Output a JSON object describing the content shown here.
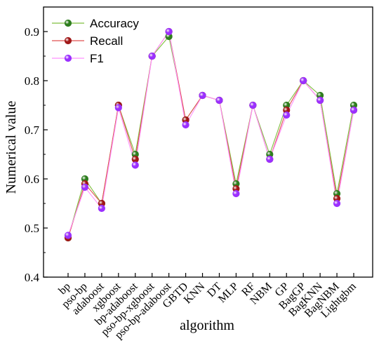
{
  "chart_data": {
    "type": "line",
    "categories": [
      "bp",
      "pso-bp",
      "adaboost",
      "xgboost",
      "bp-adaboost",
      "pso-bp-xgboost",
      "pso-bp-adaboost",
      "GBTD",
      "KNN",
      "DT",
      "MLP",
      "RF",
      "NBM",
      "GP",
      "BagGP",
      "BagKNN",
      "BagNBM",
      "Lightgbm"
    ],
    "series": [
      {
        "name": "Accuracy",
        "color": "#7fbf3f",
        "marker_color": "#2e7d1e",
        "values": [
          0.48,
          0.6,
          0.55,
          0.75,
          0.65,
          0.85,
          0.89,
          0.72,
          0.77,
          0.76,
          0.59,
          0.75,
          0.65,
          0.75,
          0.8,
          0.77,
          0.57,
          0.75
        ]
      },
      {
        "name": "Recall",
        "color": "#e05050",
        "marker_color": "#a01818",
        "values": [
          0.48,
          0.59,
          0.55,
          0.75,
          0.64,
          0.85,
          0.9,
          0.72,
          0.77,
          0.76,
          0.58,
          0.75,
          0.64,
          0.74,
          0.8,
          0.76,
          0.56,
          0.74
        ]
      },
      {
        "name": "F1",
        "color": "#ff90ff",
        "marker_color": "#9b30ff",
        "values": [
          0.485,
          0.583,
          0.54,
          0.745,
          0.628,
          0.85,
          0.9,
          0.71,
          0.77,
          0.76,
          0.57,
          0.75,
          0.64,
          0.73,
          0.8,
          0.76,
          0.55,
          0.74
        ]
      }
    ],
    "xlabel": "algorithm",
    "ylabel": "Numerical value",
    "ylim": [
      0.4,
      0.95
    ],
    "yticks": [
      "0.4",
      "0.5",
      "0.6",
      "0.7",
      "0.8",
      "0.9"
    ],
    "grid": false,
    "legend": "top-left"
  }
}
